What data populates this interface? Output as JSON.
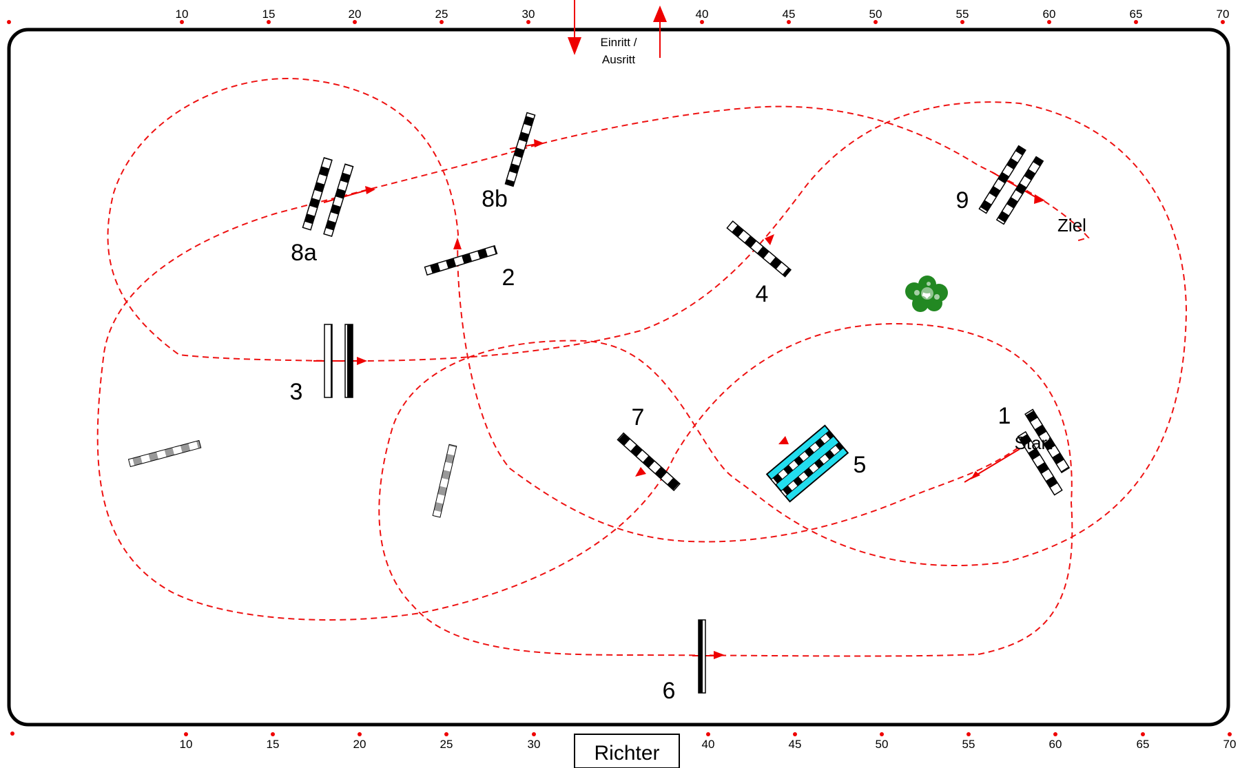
{
  "colors": {
    "route": "#ee1111",
    "border": "#000000",
    "pole_dark": "#000000",
    "pole_light": "#ffffff",
    "pole_grey": "#999999",
    "water": "#22ddee",
    "bush": "#228822"
  },
  "ruler_top": [
    "10",
    "15",
    "20",
    "25",
    "30",
    "40",
    "45",
    "50",
    "55",
    "60",
    "65",
    "70"
  ],
  "ruler_bottom": [
    "10",
    "15",
    "20",
    "25",
    "30",
    "40",
    "45",
    "50",
    "55",
    "60",
    "65",
    "70"
  ],
  "entrance": {
    "line1": "Einritt /",
    "line2": "Ausritt"
  },
  "judge": "Richter",
  "obstacles": {
    "o1": "1",
    "o2": "2",
    "o3": "3",
    "o4": "4",
    "o5": "5",
    "o6": "6",
    "o7": "7",
    "o8a": "8a",
    "o8b": "8b",
    "o9": "9"
  },
  "start_label": "Start",
  "finish_label": "Ziel",
  "icons": {
    "bush": "bush-icon",
    "arrow_in": "arrow-down-icon",
    "arrow_out": "arrow-up-icon"
  }
}
